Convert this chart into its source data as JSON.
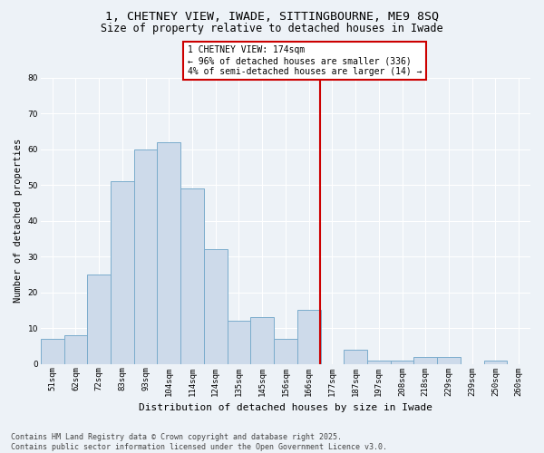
{
  "title_line1": "1, CHETNEY VIEW, IWADE, SITTINGBOURNE, ME9 8SQ",
  "title_line2": "Size of property relative to detached houses in Iwade",
  "xlabel": "Distribution of detached houses by size in Iwade",
  "ylabel": "Number of detached properties",
  "bar_labels": [
    "51sqm",
    "62sqm",
    "72sqm",
    "83sqm",
    "93sqm",
    "104sqm",
    "114sqm",
    "124sqm",
    "135sqm",
    "145sqm",
    "156sqm",
    "166sqm",
    "177sqm",
    "187sqm",
    "197sqm",
    "208sqm",
    "218sqm",
    "229sqm",
    "239sqm",
    "250sqm",
    "260sqm"
  ],
  "bar_values": [
    7,
    8,
    25,
    51,
    60,
    62,
    49,
    32,
    12,
    13,
    7,
    15,
    0,
    4,
    1,
    1,
    2,
    2,
    0,
    1,
    0
  ],
  "bar_color": "#cddaea",
  "bar_edge_color": "#7aaccc",
  "vline_x_index": 12,
  "vline_color": "#cc0000",
  "annotation_text": "1 CHETNEY VIEW: 174sqm\n← 96% of detached houses are smaller (336)\n4% of semi-detached houses are larger (14) →",
  "annotation_box_color": "#ffffff",
  "annotation_box_edge": "#cc0000",
  "ylim": [
    0,
    80
  ],
  "yticks": [
    0,
    10,
    20,
    30,
    40,
    50,
    60,
    70,
    80
  ],
  "footer_text": "Contains HM Land Registry data © Crown copyright and database right 2025.\nContains public sector information licensed under the Open Government Licence v3.0.",
  "background_color": "#edf2f7",
  "grid_color": "#ffffff",
  "title_fontsize": 9.5,
  "subtitle_fontsize": 8.5,
  "tick_fontsize": 6.5,
  "ylabel_fontsize": 7.5,
  "xlabel_fontsize": 8,
  "annotation_fontsize": 7,
  "footer_fontsize": 6
}
